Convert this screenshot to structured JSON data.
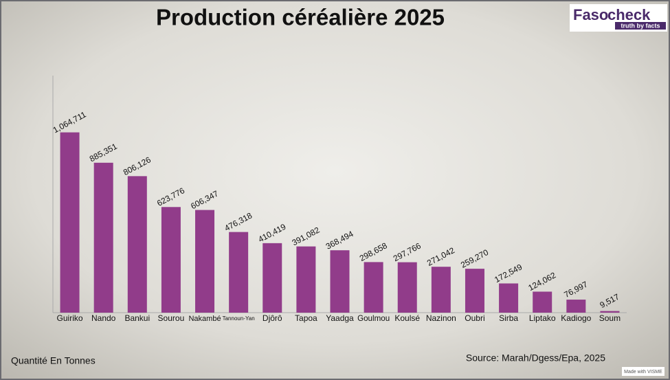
{
  "chart_data": {
    "type": "bar",
    "title": "Production céréalière 2025",
    "categories": [
      "Guiriko",
      "Nando",
      "Bankui",
      "Sourou",
      "Nakambé",
      "Tannoun-Yan",
      "Djôrô",
      "Tapoa",
      "Yaadga",
      "Goulmou",
      "Koulsé",
      "Nazinon",
      "Oubri",
      "Sirba",
      "Liptako",
      "Kadiogo",
      "Soum"
    ],
    "values": [
      1064711,
      885351,
      806126,
      623776,
      606347,
      476318,
      410419,
      391082,
      368494,
      298658,
      297766,
      271042,
      259270,
      172549,
      124062,
      76997,
      9517
    ],
    "value_labels": [
      "1,064,711",
      "885,351",
      "806,126",
      "623,776",
      "606,347",
      "476,318",
      "410,419",
      "391,082",
      "368,494",
      "298,658",
      "297,766",
      "271,042",
      "259,270",
      "172,549",
      "124,062",
      "76,997",
      "9,517"
    ],
    "color": "#913c8a",
    "ylim": [
      0,
      1400000
    ],
    "unit_label": "Quantité En Tonnes",
    "source": "Source: Marah/Dgess/Epa, 2025"
  },
  "logo": {
    "name_part1": "Faso",
    "name_part2": "check",
    "tagline": "truth by facts"
  },
  "watermark": "Made with VISME"
}
